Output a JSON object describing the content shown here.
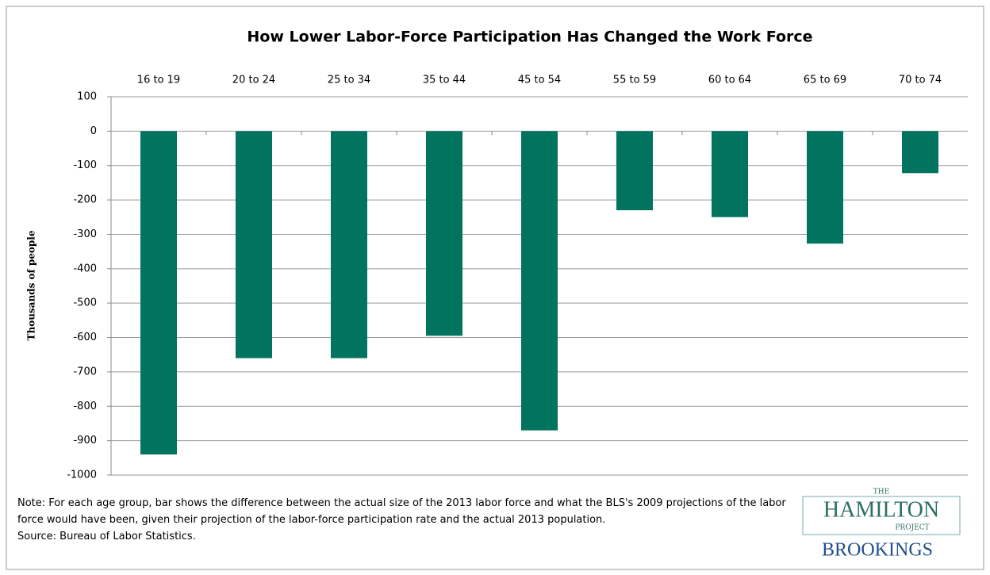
{
  "chart_data": {
    "type": "bar",
    "title": "How Lower Labor-Force Participation Has Changed the Work Force",
    "y_label": "Thousands of people",
    "categories": [
      "16 to 19",
      "20 to 24",
      "25 to 34",
      "35 to 44",
      "45 to 54",
      "55 to 59",
      "60 to 64",
      "65 to 69",
      "70 to 74"
    ],
    "values": [
      -940,
      -660,
      -660,
      -595,
      -870,
      -230,
      -250,
      -327,
      -122
    ],
    "color": "#00745f",
    "ylim": [
      -1000,
      100
    ],
    "yticks": [
      100,
      0,
      -100,
      -200,
      -300,
      -400,
      -500,
      -600,
      -700,
      -800,
      -900,
      -1000
    ],
    "grid": true,
    "note": "Note: For each age group, bar shows the difference between the actual size of the 2013 labor force and what the BLS's 2009 projections of the labor force would have been, given their projection of the labor-force participation rate and the actual 2013 population.",
    "source": "Source: Bureau of Labor Statistics.",
    "logo": {
      "the": "THE",
      "hamilton": "HAMILTON",
      "project": "PROJECT",
      "brookings": "BROOKINGS"
    }
  }
}
